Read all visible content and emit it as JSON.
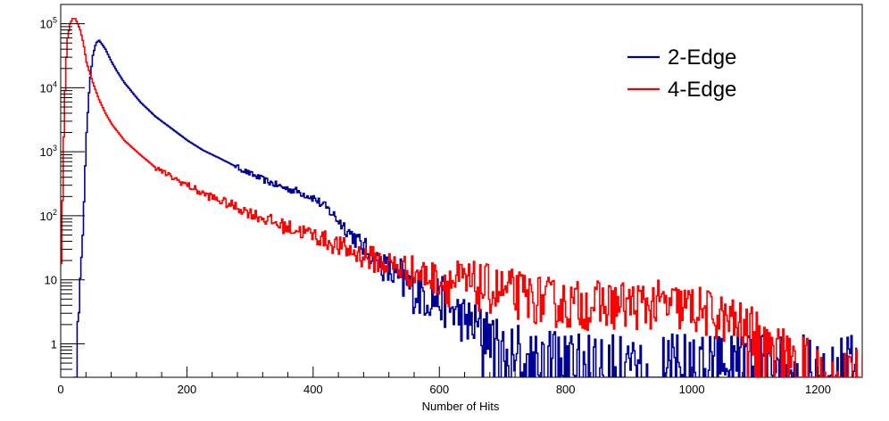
{
  "chart_data": {
    "type": "line",
    "title": "",
    "xlabel": "Number of Hits",
    "ylabel": "",
    "xlim": [
      0,
      1270
    ],
    "ylim": [
      0.3,
      200000
    ],
    "yscale": "log",
    "grid": false,
    "legend_position": "top-right",
    "x_ticks": [
      0,
      200,
      400,
      600,
      800,
      1000,
      1200
    ],
    "x_tick_labels": [
      "0",
      "200",
      "400",
      "600",
      "800",
      "1000",
      "1200"
    ],
    "y_ticks": [
      1,
      10,
      100,
      1000,
      10000,
      100000
    ],
    "y_tick_labels": [
      {
        "base": "1",
        "exp": ""
      },
      {
        "base": "10",
        "exp": ""
      },
      {
        "base": "10",
        "exp": "2"
      },
      {
        "base": "10",
        "exp": "3"
      },
      {
        "base": "10",
        "exp": "4"
      },
      {
        "base": "10",
        "exp": "5"
      }
    ],
    "series": [
      {
        "name": "2-Edge",
        "color": "#000099",
        "x": [
          20,
          25,
          30,
          35,
          40,
          45,
          50,
          55,
          60,
          65,
          70,
          80,
          90,
          100,
          125,
          150,
          175,
          200,
          225,
          250,
          275,
          300,
          325,
          350,
          375,
          400,
          425,
          450,
          475,
          500,
          525,
          550,
          575,
          600,
          625,
          650,
          675,
          700,
          750,
          800,
          850,
          900,
          950,
          1000,
          1100,
          1200,
          1260
        ],
        "y": [
          0.3,
          1,
          5,
          100,
          2000,
          12000,
          32000,
          50000,
          55000,
          47000,
          40000,
          25000,
          17000,
          12000,
          6000,
          3500,
          2300,
          1500,
          1050,
          800,
          600,
          450,
          350,
          280,
          240,
          190,
          120,
          65,
          35,
          20,
          12,
          8,
          6,
          5,
          3,
          2,
          1.5,
          1,
          0.7,
          0.6,
          0.6,
          0.6,
          0.6,
          0.6,
          0.6,
          0.6,
          0.6
        ]
      },
      {
        "name": "4-Edge",
        "color": "#ff0000",
        "x": [
          0,
          2,
          5,
          8,
          10,
          14,
          18,
          22,
          26,
          30,
          35,
          40,
          50,
          60,
          70,
          80,
          100,
          125,
          150,
          175,
          200,
          225,
          250,
          275,
          300,
          350,
          400,
          450,
          500,
          550,
          600,
          650,
          700,
          750,
          800,
          850,
          900,
          950,
          1000,
          1050,
          1100,
          1120,
          1200,
          1270
        ],
        "y": [
          20,
          200,
          5000,
          30000,
          60000,
          100000,
          120000,
          120000,
          100000,
          80000,
          50000,
          25000,
          12000,
          6500,
          4000,
          2700,
          1500,
          900,
          560,
          400,
          300,
          220,
          175,
          140,
          110,
          70,
          50,
          30,
          20,
          14,
          10,
          8,
          6.5,
          5,
          4,
          4,
          4,
          4,
          3.5,
          2.5,
          1.5,
          1,
          0.4,
          0.4
        ]
      }
    ]
  }
}
